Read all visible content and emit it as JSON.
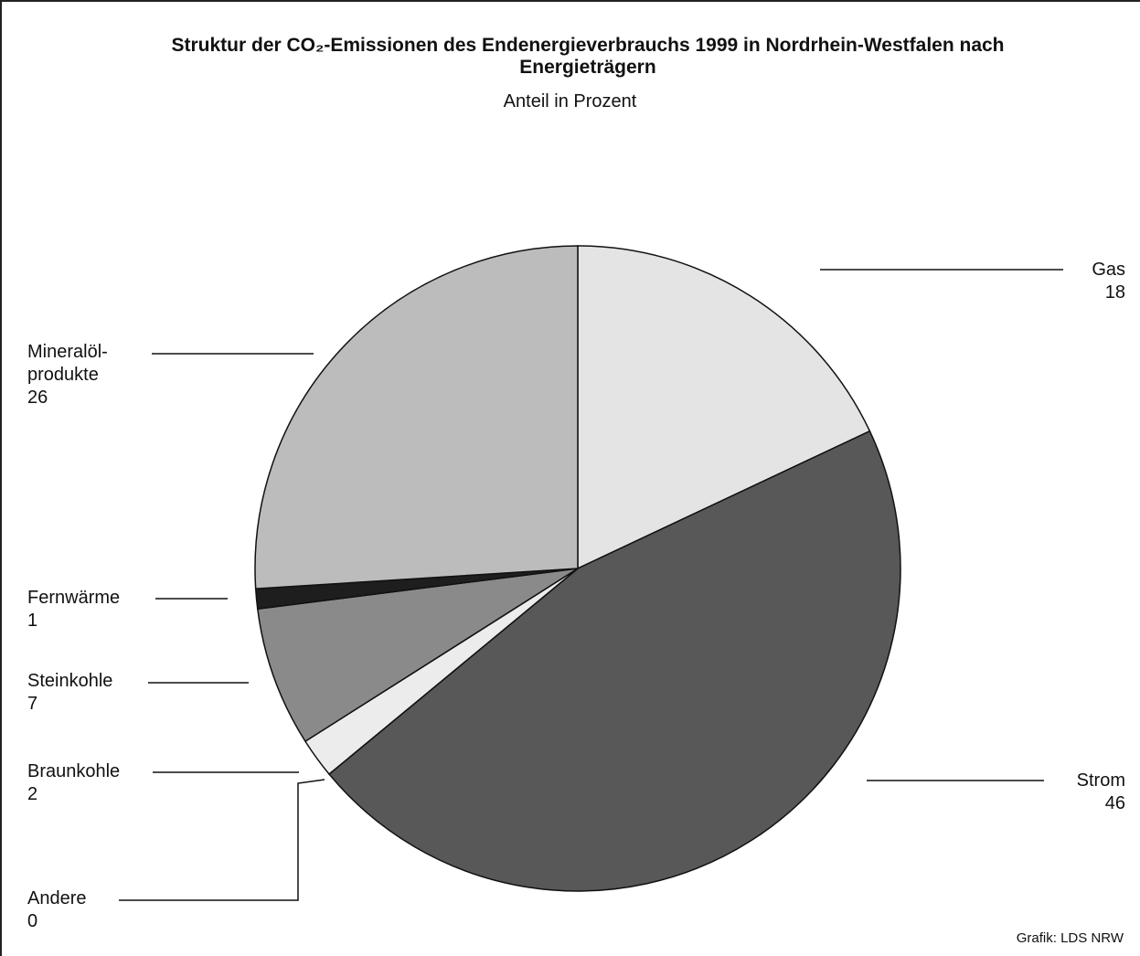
{
  "chart_data": {
    "type": "pie",
    "title": "Struktur der CO₂-Emissionen des Endenergieverbrauchs 1999 in Nordrhein-Westfalen nach Energieträgern",
    "subtitle": "Anteil in Prozent",
    "categories": [
      "Gas",
      "Strom",
      "Andere",
      "Braunkohle",
      "Steinkohle",
      "Fernwärme",
      "Mineralöl-produkte"
    ],
    "values": [
      18,
      46,
      0,
      2,
      7,
      1,
      26
    ],
    "colors": [
      "#e4e4e4",
      "#585858",
      "#f0f0f0",
      "#ececec",
      "#8a8a8a",
      "#1e1e1e",
      "#bcbcbc"
    ],
    "source": "Grafik: LDS NRW"
  }
}
